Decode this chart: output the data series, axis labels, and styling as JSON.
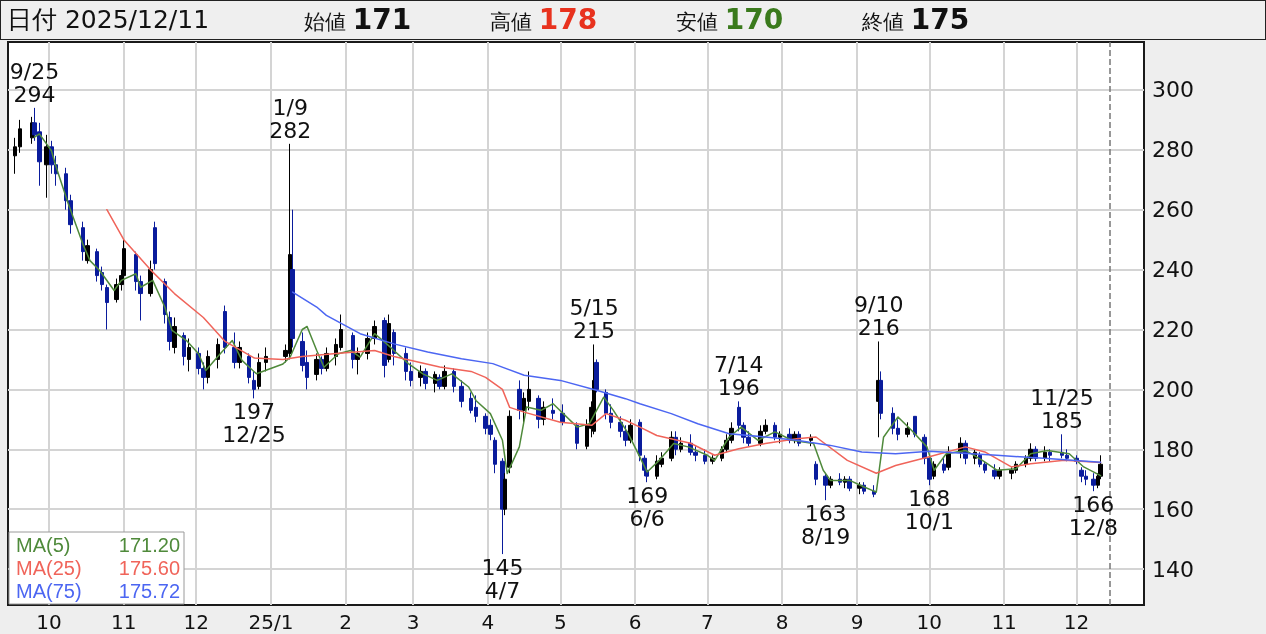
{
  "chart_data": {
    "type": "candlestick",
    "title": "日付 2025/12/11",
    "x": [
      "2024-09-17",
      "2024-09-19",
      "2024-09-24",
      "2024-09-25",
      "2024-09-27",
      "2024-09-30",
      "2024-10-02",
      "2024-10-04",
      "2024-10-08",
      "2024-10-10",
      "2024-10-15",
      "2024-10-17",
      "2024-10-21",
      "2024-10-23",
      "2024-10-25",
      "2024-10-29",
      "2024-10-31",
      "2024-11-01",
      "2024-11-06",
      "2024-11-08",
      "2024-11-12",
      "2024-11-14",
      "2024-11-18",
      "2024-11-20",
      "2024-11-22",
      "2024-11-26",
      "2024-11-28",
      "2024-12-02",
      "2024-12-04",
      "2024-12-06",
      "2024-12-10",
      "2024-12-13",
      "2024-12-17",
      "2024-12-19",
      "2024-12-23",
      "2024-12-25",
      "2024-12-27",
      "2024-12-30",
      "2025-01-07",
      "2025-01-09",
      "2025-01-10",
      "2025-01-14",
      "2025-01-16",
      "2025-01-20",
      "2025-01-22",
      "2025-01-24",
      "2025-01-28",
      "2025-01-30",
      "2025-02-04",
      "2025-02-06",
      "2025-02-10",
      "2025-02-13",
      "2025-02-17",
      "2025-02-19",
      "2025-02-21",
      "2025-02-26",
      "2025-02-28",
      "2025-03-04",
      "2025-03-06",
      "2025-03-10",
      "2025-03-12",
      "2025-03-14",
      "2025-03-18",
      "2025-03-21",
      "2025-03-25",
      "2025-03-27",
      "2025-03-31",
      "2025-04-02",
      "2025-04-04",
      "2025-04-07",
      "2025-04-08",
      "2025-04-10",
      "2025-04-14",
      "2025-04-16",
      "2025-04-18",
      "2025-04-22",
      "2025-04-24",
      "2025-04-28",
      "2025-05-02",
      "2025-05-08",
      "2025-05-12",
      "2025-05-14",
      "2025-05-15",
      "2025-05-16",
      "2025-05-20",
      "2025-05-22",
      "2025-05-26",
      "2025-05-28",
      "2025-05-30",
      "2025-06-03",
      "2025-06-05",
      "2025-06-06",
      "2025-06-10",
      "2025-06-12",
      "2025-06-16",
      "2025-06-18",
      "2025-06-20",
      "2025-06-24",
      "2025-06-26",
      "2025-06-30",
      "2025-07-03",
      "2025-07-07",
      "2025-07-09",
      "2025-07-11",
      "2025-07-14",
      "2025-07-16",
      "2025-07-18",
      "2025-07-23",
      "2025-07-25",
      "2025-07-29",
      "2025-07-31",
      "2025-08-04",
      "2025-08-06",
      "2025-08-08",
      "2025-08-13",
      "2025-08-15",
      "2025-08-19",
      "2025-08-21",
      "2025-08-25",
      "2025-08-27",
      "2025-08-29",
      "2025-09-02",
      "2025-09-04",
      "2025-09-08",
      "2025-09-10",
      "2025-09-11",
      "2025-09-16",
      "2025-09-18",
      "2025-09-22",
      "2025-09-25",
      "2025-09-29",
      "2025-10-01",
      "2025-10-03",
      "2025-10-07",
      "2025-10-09",
      "2025-10-14",
      "2025-10-16",
      "2025-10-20",
      "2025-10-22",
      "2025-10-24",
      "2025-10-28",
      "2025-10-30",
      "2025-11-04",
      "2025-11-06",
      "2025-11-10",
      "2025-11-12",
      "2025-11-14",
      "2025-11-18",
      "2025-11-20",
      "2025-11-25",
      "2025-11-27",
      "2025-12-01",
      "2025-12-03",
      "2025-12-05",
      "2025-12-08",
      "2025-12-10",
      "2025-12-11"
    ],
    "ohlc": [
      [
        278,
        284,
        272,
        281
      ],
      [
        281,
        290,
        279,
        287
      ],
      [
        284,
        291,
        282,
        289
      ],
      [
        289,
        294,
        283,
        285
      ],
      [
        286,
        289,
        268,
        276
      ],
      [
        275,
        285,
        264,
        281
      ],
      [
        281,
        283,
        272,
        275
      ],
      [
        275,
        278,
        268,
        272
      ],
      [
        272,
        274,
        260,
        263
      ],
      [
        263,
        265,
        252,
        255
      ],
      [
        254,
        256,
        243,
        246
      ],
      [
        243,
        250,
        242,
        248
      ],
      [
        246,
        247,
        236,
        238
      ],
      [
        239,
        241,
        233,
        235
      ],
      [
        234,
        235,
        220,
        229
      ],
      [
        230,
        237,
        229,
        235
      ],
      [
        235,
        240,
        233,
        238
      ],
      [
        238,
        250,
        236,
        247
      ],
      [
        245,
        246,
        233,
        236
      ],
      [
        236,
        238,
        223,
        232
      ],
      [
        232,
        243,
        231,
        240
      ],
      [
        254,
        256,
        240,
        242
      ],
      [
        236,
        237,
        222,
        225
      ],
      [
        224,
        226,
        213,
        216
      ],
      [
        214,
        224,
        212,
        221
      ],
      [
        218,
        219,
        208,
        211
      ],
      [
        210,
        217,
        206,
        214
      ],
      [
        212,
        214,
        205,
        207
      ],
      [
        207,
        209,
        200,
        204
      ],
      [
        204,
        213,
        202,
        211
      ],
      [
        210,
        217,
        207,
        215
      ],
      [
        226,
        228,
        212,
        214
      ],
      [
        214,
        219,
        207,
        209
      ],
      [
        209,
        216,
        207,
        214
      ],
      [
        211,
        212,
        202,
        204
      ],
      [
        203,
        206,
        197,
        200
      ],
      [
        201,
        212,
        200,
        209
      ],
      [
        209,
        214,
        206,
        211
      ],
      [
        211,
        215,
        209,
        213
      ],
      [
        212,
        282,
        210,
        245
      ],
      [
        240,
        260,
        214,
        217
      ],
      [
        216,
        219,
        206,
        208
      ],
      [
        209,
        213,
        200,
        204
      ],
      [
        205,
        212,
        203,
        210
      ],
      [
        210,
        211,
        205,
        207
      ],
      [
        207,
        214,
        206,
        212
      ],
      [
        211,
        217,
        208,
        215
      ],
      [
        214,
        225,
        213,
        220
      ],
      [
        218,
        219,
        207,
        210
      ],
      [
        210,
        214,
        205,
        212
      ],
      [
        212,
        219,
        210,
        217
      ],
      [
        217,
        223,
        215,
        221
      ],
      [
        223,
        224,
        204,
        208
      ],
      [
        210,
        225,
        209,
        222
      ],
      [
        219,
        220,
        208,
        212
      ],
      [
        212,
        214,
        203,
        206
      ],
      [
        206,
        209,
        201,
        203
      ],
      [
        204,
        208,
        201,
        206
      ],
      [
        206,
        207,
        200,
        202
      ],
      [
        202,
        206,
        199,
        205
      ],
      [
        204,
        205,
        200,
        201
      ],
      [
        201,
        208,
        200,
        206
      ],
      [
        206,
        207,
        199,
        201
      ],
      [
        201,
        203,
        194,
        196
      ],
      [
        197,
        199,
        192,
        193
      ],
      [
        194,
        198,
        189,
        191
      ],
      [
        191,
        192,
        185,
        187
      ],
      [
        188,
        190,
        183,
        185
      ],
      [
        183,
        184,
        172,
        175
      ],
      [
        176,
        177,
        145,
        160
      ],
      [
        160,
        172,
        158,
        170
      ],
      [
        174,
        193,
        172,
        191
      ],
      [
        200,
        203,
        190,
        193
      ],
      [
        193,
        199,
        189,
        197
      ],
      [
        196,
        206,
        193,
        200
      ],
      [
        197,
        198,
        187,
        190
      ],
      [
        190,
        196,
        188,
        194
      ],
      [
        193,
        197,
        190,
        192
      ],
      [
        192,
        195,
        188,
        189
      ],
      [
        188,
        189,
        180,
        182
      ],
      [
        181,
        190,
        180,
        188
      ],
      [
        187,
        196,
        184,
        194
      ],
      [
        186,
        215,
        185,
        203
      ],
      [
        209,
        210,
        199,
        200
      ],
      [
        199,
        200,
        190,
        192
      ],
      [
        192,
        195,
        187,
        189
      ],
      [
        189,
        191,
        184,
        186
      ],
      [
        186,
        188,
        181,
        183
      ],
      [
        183,
        190,
        182,
        188
      ],
      [
        189,
        190,
        176,
        178
      ],
      [
        177,
        178,
        171,
        173
      ],
      [
        173,
        175,
        169,
        171
      ],
      [
        171,
        178,
        170,
        176
      ],
      [
        175,
        179,
        174,
        177
      ],
      [
        177,
        186,
        176,
        184
      ],
      [
        184,
        186,
        178,
        180
      ],
      [
        180,
        184,
        179,
        182
      ],
      [
        182,
        185,
        178,
        179
      ],
      [
        179,
        181,
        176,
        178
      ],
      [
        178,
        180,
        175,
        176
      ],
      [
        176,
        178,
        175,
        177
      ],
      [
        177,
        181,
        176,
        180
      ],
      [
        180,
        185,
        179,
        183
      ],
      [
        183,
        189,
        182,
        187
      ],
      [
        194,
        196,
        186,
        188
      ],
      [
        188,
        189,
        182,
        184
      ],
      [
        184,
        186,
        181,
        182
      ],
      [
        182,
        188,
        181,
        186
      ],
      [
        186,
        190,
        185,
        188
      ],
      [
        188,
        189,
        183,
        184
      ],
      [
        184,
        186,
        182,
        185
      ],
      [
        185,
        187,
        182,
        183
      ],
      [
        183,
        186,
        182,
        185
      ],
      [
        185,
        186,
        181,
        182
      ],
      [
        183,
        185,
        181,
        184
      ],
      [
        175,
        176,
        168,
        170
      ],
      [
        171,
        172,
        163,
        168
      ],
      [
        168,
        171,
        167,
        170
      ],
      [
        170,
        172,
        168,
        169
      ],
      [
        169,
        171,
        167,
        170
      ],
      [
        170,
        171,
        166,
        167
      ],
      [
        167,
        169,
        165,
        168
      ],
      [
        168,
        169,
        165,
        166
      ],
      [
        166,
        168,
        164,
        165
      ],
      [
        196,
        216,
        184,
        203
      ],
      [
        203,
        206,
        190,
        192
      ],
      [
        192,
        194,
        185,
        187
      ],
      [
        187,
        190,
        183,
        185
      ],
      [
        185,
        189,
        184,
        187
      ],
      [
        191,
        191,
        184,
        185
      ],
      [
        184,
        185,
        175,
        177
      ],
      [
        177,
        178,
        168,
        170
      ],
      [
        171,
        176,
        170,
        175
      ],
      [
        175,
        177,
        172,
        173
      ],
      [
        174,
        181,
        173,
        179
      ],
      [
        179,
        184,
        177,
        182
      ],
      [
        182,
        183,
        175,
        177
      ],
      [
        177,
        180,
        175,
        179
      ],
      [
        178,
        179,
        174,
        175
      ],
      [
        175,
        176,
        172,
        173
      ],
      [
        173,
        175,
        170,
        171
      ],
      [
        171,
        174,
        170,
        173
      ],
      [
        172,
        174,
        170,
        173
      ],
      [
        173,
        176,
        172,
        175
      ],
      [
        175,
        178,
        174,
        177
      ],
      [
        177,
        182,
        176,
        180
      ],
      [
        180,
        181,
        176,
        177
      ],
      [
        177,
        181,
        176,
        179
      ],
      [
        179,
        180,
        176,
        178
      ],
      [
        179,
        185,
        177,
        178
      ],
      [
        178,
        180,
        176,
        177
      ],
      [
        177,
        178,
        175,
        176
      ],
      [
        173,
        174,
        169,
        171
      ],
      [
        171,
        173,
        168,
        170
      ],
      [
        170,
        172,
        166,
        168
      ],
      [
        168,
        172,
        167,
        171
      ],
      [
        171,
        178,
        170,
        175
      ]
    ],
    "colors": [
      "#000000",
      "#000000",
      "#000000",
      "#0a1c9c",
      "#0a1c9c",
      "#000000",
      "#0a1c9c",
      "#0a1c9c",
      "#0a1c9c",
      "#0a1c9c",
      "#0a1c9c",
      "#000000",
      "#0a1c9c",
      "#0a1c9c",
      "#0a1c9c",
      "#000000",
      "#000000",
      "#000000",
      "#0a1c9c",
      "#0a1c9c",
      "#000000",
      "#0a1c9c",
      "#0a1c9c",
      "#0a1c9c",
      "#000000",
      "#0a1c9c",
      "#000000",
      "#0a1c9c",
      "#0a1c9c",
      "#000000",
      "#000000",
      "#0a1c9c",
      "#0a1c9c",
      "#000000",
      "#0a1c9c",
      "#0a1c9c",
      "#000000",
      "#000000",
      "#000000",
      "#000000",
      "#0a1c9c",
      "#0a1c9c",
      "#0a1c9c",
      "#000000",
      "#0a1c9c",
      "#000000",
      "#000000",
      "#000000",
      "#0a1c9c",
      "#000000",
      "#000000",
      "#000000",
      "#0a1c9c",
      "#000000",
      "#0a1c9c",
      "#0a1c9c",
      "#0a1c9c",
      "#000000",
      "#0a1c9c",
      "#000000",
      "#0a1c9c",
      "#000000",
      "#0a1c9c",
      "#0a1c9c",
      "#0a1c9c",
      "#0a1c9c",
      "#0a1c9c",
      "#0a1c9c",
      "#0a1c9c",
      "#0a1c9c",
      "#000000",
      "#000000",
      "#0a1c9c",
      "#000000",
      "#000000",
      "#0a1c9c",
      "#000000",
      "#0a1c9c",
      "#0a1c9c",
      "#0a1c9c",
      "#000000",
      "#000000",
      "#000000",
      "#0a1c9c",
      "#0a1c9c",
      "#0a1c9c",
      "#0a1c9c",
      "#0a1c9c",
      "#000000",
      "#0a1c9c",
      "#0a1c9c",
      "#0a1c9c",
      "#000000",
      "#000000",
      "#000000",
      "#0a1c9c",
      "#000000",
      "#0a1c9c",
      "#0a1c9c",
      "#0a1c9c",
      "#000000",
      "#000000",
      "#000000",
      "#000000",
      "#0a1c9c",
      "#0a1c9c",
      "#0a1c9c",
      "#000000",
      "#000000",
      "#0a1c9c",
      "#000000",
      "#0a1c9c",
      "#000000",
      "#0a1c9c",
      "#000000",
      "#0a1c9c",
      "#0a1c9c",
      "#000000",
      "#0a1c9c",
      "#000000",
      "#0a1c9c",
      "#000000",
      "#0a1c9c",
      "#0a1c9c",
      "#000000",
      "#0a1c9c",
      "#0a1c9c",
      "#0a1c9c",
      "#000000",
      "#0a1c9c",
      "#0a1c9c",
      "#0a1c9c",
      "#000000",
      "#0a1c9c",
      "#000000",
      "#000000",
      "#0a1c9c",
      "#000000",
      "#0a1c9c",
      "#0a1c9c",
      "#0a1c9c",
      "#000000",
      "#000000",
      "#000000",
      "#000000",
      "#000000",
      "#0a1c9c",
      "#000000",
      "#0a1c9c",
      "#0a1c9c",
      "#0a1c9c",
      "#0a1c9c",
      "#0a1c9c",
      "#0a1c9c",
      "#0a1c9c",
      "#000000",
      "#000000"
    ],
    "series": [
      {
        "type": "line",
        "name": "MA(5)",
        "color": "#4f8a3b",
        "x": [
          "2024-09-25",
          "2024-09-27",
          "2024-10-02",
          "2024-10-04",
          "2024-10-09",
          "2024-10-15",
          "2024-10-18",
          "2024-10-22",
          "2024-10-28",
          "2024-10-31",
          "2024-11-06",
          "2024-11-08",
          "2024-11-13",
          "2024-11-18",
          "2024-11-21",
          "2024-11-27",
          "2024-12-02",
          "2024-12-05",
          "2024-12-11",
          "2024-12-16",
          "2024-12-20",
          "2024-12-26",
          "2025-01-06",
          "2025-01-09",
          "2025-01-14",
          "2025-01-16",
          "2025-01-20",
          "2025-01-23",
          "2025-01-29",
          "2025-02-03",
          "2025-02-07",
          "2025-02-13",
          "2025-02-18",
          "2025-02-21",
          "2025-02-27",
          "2025-03-05",
          "2025-03-11",
          "2025-03-17",
          "2025-03-24",
          "2025-03-27",
          "2025-04-02",
          "2025-04-07",
          "2025-04-09",
          "2025-04-14",
          "2025-04-17",
          "2025-04-23",
          "2025-04-28",
          "2025-05-08",
          "2025-05-13",
          "2025-05-19",
          "2025-05-23",
          "2025-05-29",
          "2025-06-03",
          "2025-06-06",
          "2025-06-11",
          "2025-06-17",
          "2025-06-23",
          "2025-07-01",
          "2025-07-04",
          "2025-07-10",
          "2025-07-15",
          "2025-07-22",
          "2025-07-29",
          "2025-08-05",
          "2025-08-14",
          "2025-08-18",
          "2025-08-21",
          "2025-08-29",
          "2025-09-04",
          "2025-09-09",
          "2025-09-12",
          "2025-09-18",
          "2025-09-24",
          "2025-09-30",
          "2025-10-03",
          "2025-10-08",
          "2025-10-16",
          "2025-10-23",
          "2025-10-29",
          "2025-11-06",
          "2025-11-12",
          "2025-11-19",
          "2025-11-28",
          "2025-12-04",
          "2025-12-11"
        ],
        "values": [
          284.2,
          285.3,
          279.7,
          274.2,
          262,
          248.6,
          243,
          239.7,
          233,
          236.4,
          238.6,
          234.1,
          236.4,
          227.5,
          219.7,
          216.3,
          211.9,
          206.3,
          211.9,
          216.3,
          209.7,
          205.2,
          208.5,
          210.8,
          220,
          221,
          213,
          207.4,
          211.9,
          213,
          210.8,
          218.6,
          215.2,
          213,
          208.6,
          205.2,
          203,
          205.2,
          200.8,
          196.3,
          191.9,
          183,
          171.9,
          180.8,
          194.1,
          193,
          195.2,
          187.4,
          188.5,
          197.4,
          193,
          185.5,
          177.4,
          172.4,
          176.3,
          181.9,
          180.8,
          178,
          176.3,
          184.1,
          187.4,
          183,
          185.8,
          183,
          181.9,
          173,
          169.6,
          169.6,
          167.4,
          165.7,
          184,
          190.8,
          186,
          180.8,
          173,
          178.5,
          179.6,
          176.3,
          173,
          173.5,
          178.5,
          179.6,
          178.5,
          174.1,
          171.2
        ]
      },
      {
        "type": "line",
        "name": "MA(25)",
        "color": "#f0645a",
        "x": [
          "2024-10-25",
          "2024-11-01",
          "2024-11-12",
          "2024-11-22",
          "2024-12-04",
          "2024-12-13",
          "2024-12-25",
          "2025-01-06",
          "2025-01-14",
          "2025-01-28",
          "2025-02-13",
          "2025-02-21",
          "2025-03-12",
          "2025-03-25",
          "2025-03-31",
          "2025-04-07",
          "2025-04-10",
          "2025-04-16",
          "2025-05-01",
          "2025-05-14",
          "2025-05-20",
          "2025-05-28",
          "2025-06-03",
          "2025-06-10",
          "2025-06-24",
          "2025-07-04",
          "2025-07-14",
          "2025-07-25",
          "2025-08-07",
          "2025-08-15",
          "2025-08-28",
          "2025-09-09",
          "2025-09-17",
          "2025-10-01",
          "2025-10-16",
          "2025-10-24",
          "2025-11-04",
          "2025-11-12",
          "2025-11-26",
          "2025-12-11"
        ],
        "values": [
          260,
          250,
          240,
          232,
          224,
          216,
          210.5,
          210,
          211,
          212,
          213,
          211,
          207.5,
          206,
          204,
          200,
          194,
          192.4,
          189,
          188,
          191.9,
          189.7,
          187.4,
          184.6,
          182,
          178,
          180.2,
          181.9,
          183.5,
          184.1,
          176.3,
          172,
          174.6,
          177.5,
          180.8,
          179.1,
          174.1,
          175.2,
          176.3,
          175.6
        ]
      },
      {
        "type": "line",
        "name": "MA(75)",
        "color": "#4c66f2",
        "x": [
          "2025-01-10",
          "2025-01-20",
          "2025-01-24",
          "2025-02-07",
          "2025-02-21",
          "2025-03-07",
          "2025-03-21",
          "2025-04-03",
          "2025-04-16",
          "2025-05-01",
          "2025-05-16",
          "2025-05-28",
          "2025-06-03",
          "2025-06-16",
          "2025-06-27",
          "2025-07-10",
          "2025-07-25",
          "2025-08-07",
          "2025-08-21",
          "2025-09-03",
          "2025-09-17",
          "2025-10-01",
          "2025-10-29",
          "2025-11-19",
          "2025-12-11"
        ],
        "values": [
          232.5,
          227.5,
          224.7,
          218.6,
          215.2,
          212.5,
          210.2,
          208.6,
          204.7,
          203,
          199.7,
          196.9,
          195.2,
          191.9,
          188.5,
          185.2,
          184.1,
          183,
          181.3,
          179.1,
          178.5,
          179.3,
          178,
          176.9,
          175.7
        ]
      }
    ],
    "xlim": [
      "2024-09-14",
      "2025-12-29"
    ],
    "xticks": [
      {
        "value": "2024-10-01",
        "label": "10"
      },
      {
        "value": "2024-11-01",
        "label": "11"
      },
      {
        "value": "2024-12-01",
        "label": "12"
      },
      {
        "value": "2025-01-01",
        "label": "25/1"
      },
      {
        "value": "2025-02-01",
        "label": "2"
      },
      {
        "value": "2025-03-01",
        "label": "3"
      },
      {
        "value": "2025-04-01",
        "label": "4"
      },
      {
        "value": "2025-05-01",
        "label": "5"
      },
      {
        "value": "2025-06-01",
        "label": "6"
      },
      {
        "value": "2025-07-01",
        "label": "7"
      },
      {
        "value": "2025-08-01",
        "label": "8"
      },
      {
        "value": "2025-09-01",
        "label": "9"
      },
      {
        "value": "2025-10-01",
        "label": "10"
      },
      {
        "value": "2025-11-01",
        "label": "11"
      },
      {
        "value": "2025-12-01",
        "label": "12"
      }
    ],
    "ylim": [
      128,
      316
    ],
    "yticks": [
      140,
      160,
      180,
      200,
      220,
      240,
      260,
      280,
      300
    ],
    "grid": true,
    "legend": "bottom left",
    "ref_lines": [
      {
        "axis": "x",
        "value": "2025-12-15",
        "label": null,
        "color": "#777777",
        "line_style": "dashed"
      }
    ],
    "annotations": [
      "始値 171",
      "高値 178",
      "安値 170",
      "終値 175",
      "171.20",
      "175.60",
      "175.72",
      {
        "text": "9/25\n294",
        "x": "2024-09-25",
        "y": 294
      },
      {
        "text": "1/9\n282",
        "x": "2025-01-09",
        "y": 282
      },
      {
        "text": "197\n12/25",
        "x": "2024-12-25",
        "y": 197
      },
      {
        "text": "145\n4/7",
        "x": "2025-04-07",
        "y": 145
      },
      {
        "text": "5/15\n215",
        "x": "2025-05-15",
        "y": 215
      },
      {
        "text": "169\n6/6",
        "x": "2025-06-06",
        "y": 169
      },
      {
        "text": "7/14\n196",
        "x": "2025-07-14",
        "y": 196
      },
      {
        "text": "163\n8/19",
        "x": "2025-08-19",
        "y": 163
      },
      {
        "text": "9/10\n216",
        "x": "2025-09-10",
        "y": 216
      },
      {
        "text": "168\n10/1",
        "x": "2025-10-01",
        "y": 168
      },
      {
        "text": "11/25\n185",
        "x": "2025-11-25",
        "y": 185
      },
      {
        "text": "166\n12/8",
        "x": "2025-12-08",
        "y": 166
      }
    ]
  }
}
